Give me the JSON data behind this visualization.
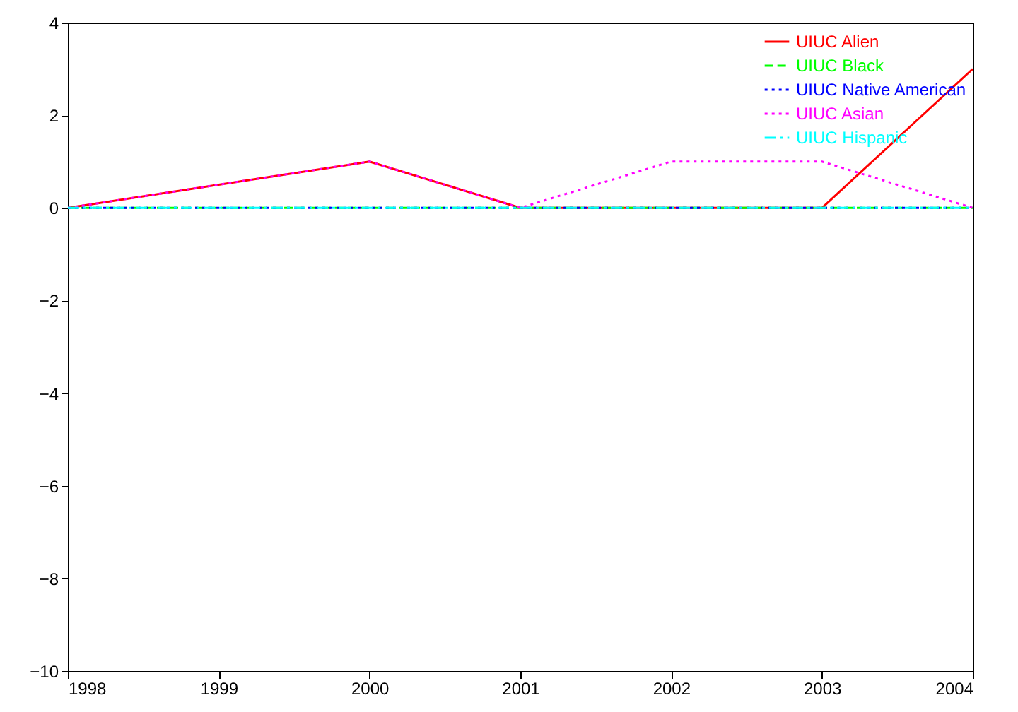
{
  "chart_data": {
    "type": "line",
    "x": [
      1998,
      2000,
      2001,
      2002,
      2003,
      2004
    ],
    "series": [
      {
        "name": "UIUC Alien",
        "color": "#ff0000",
        "line_style": "solid",
        "values": [
          0,
          1,
          0,
          0,
          0,
          3
        ]
      },
      {
        "name": "UIUC Black",
        "color": "#00ff00",
        "line_style": "dashed",
        "values": [
          0,
          0,
          0,
          0,
          0,
          0
        ]
      },
      {
        "name": "UIUC Native American",
        "color": "#0000ff",
        "line_style": "dotted",
        "values": [
          0,
          0,
          0,
          0,
          0,
          0
        ]
      },
      {
        "name": "UIUC Asian",
        "color": "#ff00ff",
        "line_style": "dotted",
        "values": [
          0,
          1,
          0,
          1,
          1,
          0
        ]
      },
      {
        "name": "UIUC Hispanic",
        "color": "#00ffff",
        "line_style": "dashdot",
        "values": [
          0,
          0,
          0,
          0,
          0,
          0
        ]
      }
    ],
    "xlim": [
      1998,
      2004
    ],
    "xticks": [
      1998,
      1999,
      2000,
      2001,
      2002,
      2003,
      2004
    ],
    "ylim": [
      -10,
      4
    ],
    "yticks": [
      -10,
      -8,
      -6,
      -4,
      -2,
      0,
      2,
      4
    ],
    "grid": false,
    "legend": "top right"
  }
}
